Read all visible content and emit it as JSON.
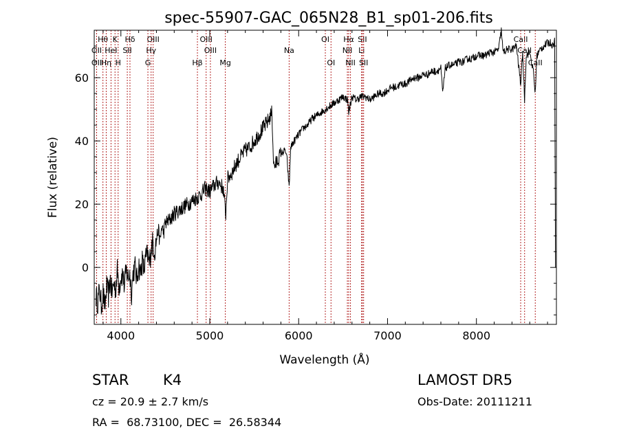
{
  "chart_data": {
    "type": "line",
    "title": "spec-55907-GAC_065N28_B1_sp01-206.fits",
    "xlabel": "Wavelength (Å)",
    "ylabel": "Flux (relative)",
    "xlim": [
      3700,
      8900
    ],
    "ylim": [
      -18,
      75
    ],
    "xticks": [
      4000,
      5000,
      6000,
      7000,
      8000
    ],
    "yticks": [
      0,
      20,
      40,
      60
    ],
    "series": [
      {
        "x": [
          3720,
          3740,
          3760,
          3780,
          3800,
          3820,
          3840,
          3860,
          3880,
          3900,
          3920,
          3940,
          3960,
          3980,
          4000,
          4020,
          4040,
          4060,
          4080,
          4100,
          4120,
          4140,
          4160,
          4180,
          4200,
          4220,
          4240,
          4260,
          4280,
          4300,
          4320,
          4340,
          4360,
          4380,
          4400,
          4420,
          4440,
          4460,
          4480,
          4500,
          4550,
          4600,
          4650,
          4700,
          4750,
          4800,
          4850,
          4900,
          4950,
          5000,
          5050,
          5100,
          5150,
          5180,
          5200,
          5250,
          5300,
          5350,
          5400,
          5450,
          5500,
          5550,
          5600,
          5650,
          5700,
          5710,
          5720,
          5750,
          5800,
          5850,
          5870,
          5893,
          5910,
          5950,
          6000,
          6050,
          6100,
          6150,
          6200,
          6250,
          6300,
          6350,
          6400,
          6450,
          6500,
          6550,
          6563,
          6600,
          6650,
          6700,
          6750,
          6800,
          6850,
          6900,
          6950,
          7000,
          7050,
          7100,
          7150,
          7200,
          7250,
          7300,
          7350,
          7400,
          7450,
          7500,
          7550,
          7600,
          7620,
          7650,
          7700,
          7750,
          7800,
          7850,
          7900,
          7950,
          8000,
          8050,
          8100,
          8150,
          8200,
          8250,
          8280,
          8300,
          8350,
          8400,
          8450,
          8498,
          8520,
          8542,
          8560,
          8600,
          8640,
          8662,
          8680,
          8720,
          8760,
          8800,
          8840,
          8860,
          8880,
          8890
        ],
        "y": [
          -9,
          -11,
          -7,
          -12,
          -8,
          -13,
          -6,
          -9,
          -4,
          -8,
          -5,
          -7,
          -1,
          -6,
          -3,
          -2,
          -6,
          -1,
          -3,
          -2,
          -8,
          -1,
          0,
          -4,
          1,
          -2,
          2,
          -1,
          3,
          4,
          1,
          6,
          8,
          5,
          9,
          12,
          8,
          13,
          11,
          14,
          15,
          17,
          18,
          19,
          20,
          21,
          22,
          23,
          25,
          24,
          26,
          27,
          25,
          17,
          28,
          30,
          33,
          35,
          37,
          38,
          40,
          42,
          44,
          46,
          49,
          39,
          32,
          33,
          36,
          37,
          34,
          25,
          38,
          40,
          42,
          44,
          45,
          47,
          48,
          49,
          50,
          51,
          52,
          53,
          54,
          53,
          49,
          54,
          53,
          54,
          54,
          53,
          54,
          55,
          55,
          56,
          57,
          57,
          58,
          58,
          59,
          60,
          60,
          61,
          61,
          62,
          62,
          63,
          55,
          63,
          64,
          64,
          65,
          65,
          66,
          66,
          67,
          67,
          67,
          68,
          68,
          69,
          75,
          68,
          69,
          69,
          70,
          58,
          68,
          53,
          67,
          68,
          62,
          55,
          67,
          69,
          70,
          71,
          71,
          70,
          72,
          0
        ]
      }
    ],
    "line_markers": [
      {
        "label": "Hθ",
        "x": 3798,
        "row": 1
      },
      {
        "label": "OII",
        "x": 3727,
        "row": 2
      },
      {
        "label": "OII",
        "x": 3727,
        "row": 3
      },
      {
        "label": "Hη",
        "x": 3835,
        "row": 3
      },
      {
        "label": "HeI",
        "x": 3889,
        "row": 2
      },
      {
        "label": "K",
        "x": 3934,
        "row": 1
      },
      {
        "label": "H",
        "x": 3969,
        "row": 3
      },
      {
        "label": "Hδ",
        "x": 4102,
        "row": 1
      },
      {
        "label": "SII",
        "x": 4072,
        "row": 2
      },
      {
        "label": "OIII",
        "x": 4363,
        "row": 1
      },
      {
        "label": "Hγ",
        "x": 4340,
        "row": 2
      },
      {
        "label": "G",
        "x": 4304,
        "row": 3
      },
      {
        "label": "OIII",
        "x": 4959,
        "row": 1
      },
      {
        "label": "OIII",
        "x": 5007,
        "row": 2
      },
      {
        "label": "Hβ",
        "x": 4861,
        "row": 3
      },
      {
        "label": "Mg",
        "x": 5175,
        "row": 3
      },
      {
        "label": "Na",
        "x": 5893,
        "row": 2
      },
      {
        "label": "OI",
        "x": 6300,
        "row": 1
      },
      {
        "label": "OI",
        "x": 6364,
        "row": 3
      },
      {
        "label": "Hα",
        "x": 6563,
        "row": 1
      },
      {
        "label": "NII",
        "x": 6548,
        "row": 2
      },
      {
        "label": "NII",
        "x": 6583,
        "row": 3
      },
      {
        "label": "SII",
        "x": 6717,
        "row": 1
      },
      {
        "label": "Li",
        "x": 6708,
        "row": 2
      },
      {
        "label": "SII",
        "x": 6731,
        "row": 3
      },
      {
        "label": "CaII",
        "x": 8498,
        "row": 1
      },
      {
        "label": "CaII",
        "x": 8542,
        "row": 2
      },
      {
        "label": "CaII",
        "x": 8662,
        "row": 3
      }
    ],
    "grid": false,
    "line_color": "#000000",
    "marker_color": "#b22222"
  },
  "info": {
    "object_class": "STAR",
    "subclass": "K4",
    "redshift": "cz = 20.9 ± 2.7 km/s",
    "coords": "RA =  68.73100, DEC =  26.58344",
    "survey": "LAMOST DR5",
    "obs_date": "Obs-Date: 20111211"
  }
}
